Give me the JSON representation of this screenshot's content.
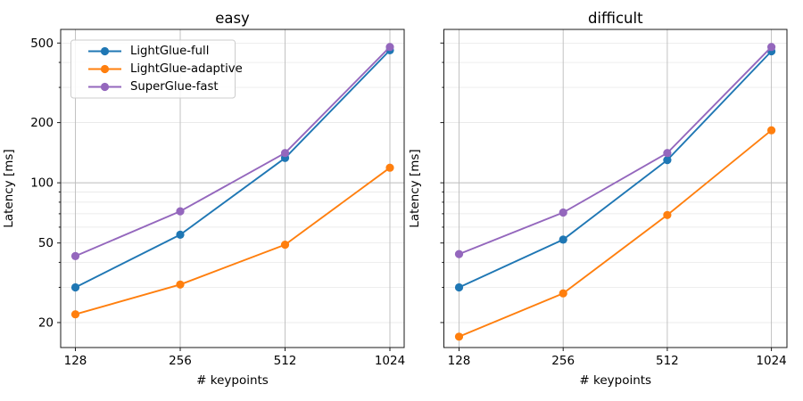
{
  "figure": {
    "background": "#ffffff",
    "description": "Two-panel log-log latency benchmark plot"
  },
  "chart_data": {
    "type": "line",
    "x": [
      128,
      256,
      512,
      1024
    ],
    "x_scale": "log2",
    "y_scale": "log10",
    "xlabel": "# keypoints",
    "ylabel": "Latency [ms]",
    "ylim": [
      15,
      585
    ],
    "grid": "major+minor",
    "y_ticks_labeled": [
      20,
      50,
      100,
      200,
      500
    ],
    "y_gridlines_minor": [
      20,
      30,
      40,
      50,
      60,
      70,
      80,
      90,
      200,
      300,
      400,
      500
    ],
    "y_gridlines_major": [
      100
    ],
    "legend_position": "upper-left of first panel",
    "panels": [
      {
        "title": "easy",
        "show_legend": true,
        "show_y_tick_labels": true,
        "series": [
          {
            "name": "LightGlue-full",
            "color": "#1f77b4",
            "values": [
              30,
              55,
              133,
              460
            ]
          },
          {
            "name": "LightGlue-adaptive",
            "color": "#ff7f0e",
            "values": [
              22,
              31,
              49,
              119
            ]
          },
          {
            "name": "SuperGlue-fast",
            "color": "#9467bd",
            "values": [
              43,
              72,
              141,
              478
            ]
          }
        ]
      },
      {
        "title": "difficult",
        "show_legend": false,
        "show_y_tick_labels": false,
        "series": [
          {
            "name": "LightGlue-full",
            "color": "#1f77b4",
            "values": [
              30,
              52,
              130,
              455
            ]
          },
          {
            "name": "LightGlue-adaptive",
            "color": "#ff7f0e",
            "values": [
              17,
              28,
              69,
              183
            ]
          },
          {
            "name": "SuperGlue-fast",
            "color": "#9467bd",
            "values": [
              44,
              71,
              141,
              478
            ]
          }
        ]
      }
    ]
  }
}
